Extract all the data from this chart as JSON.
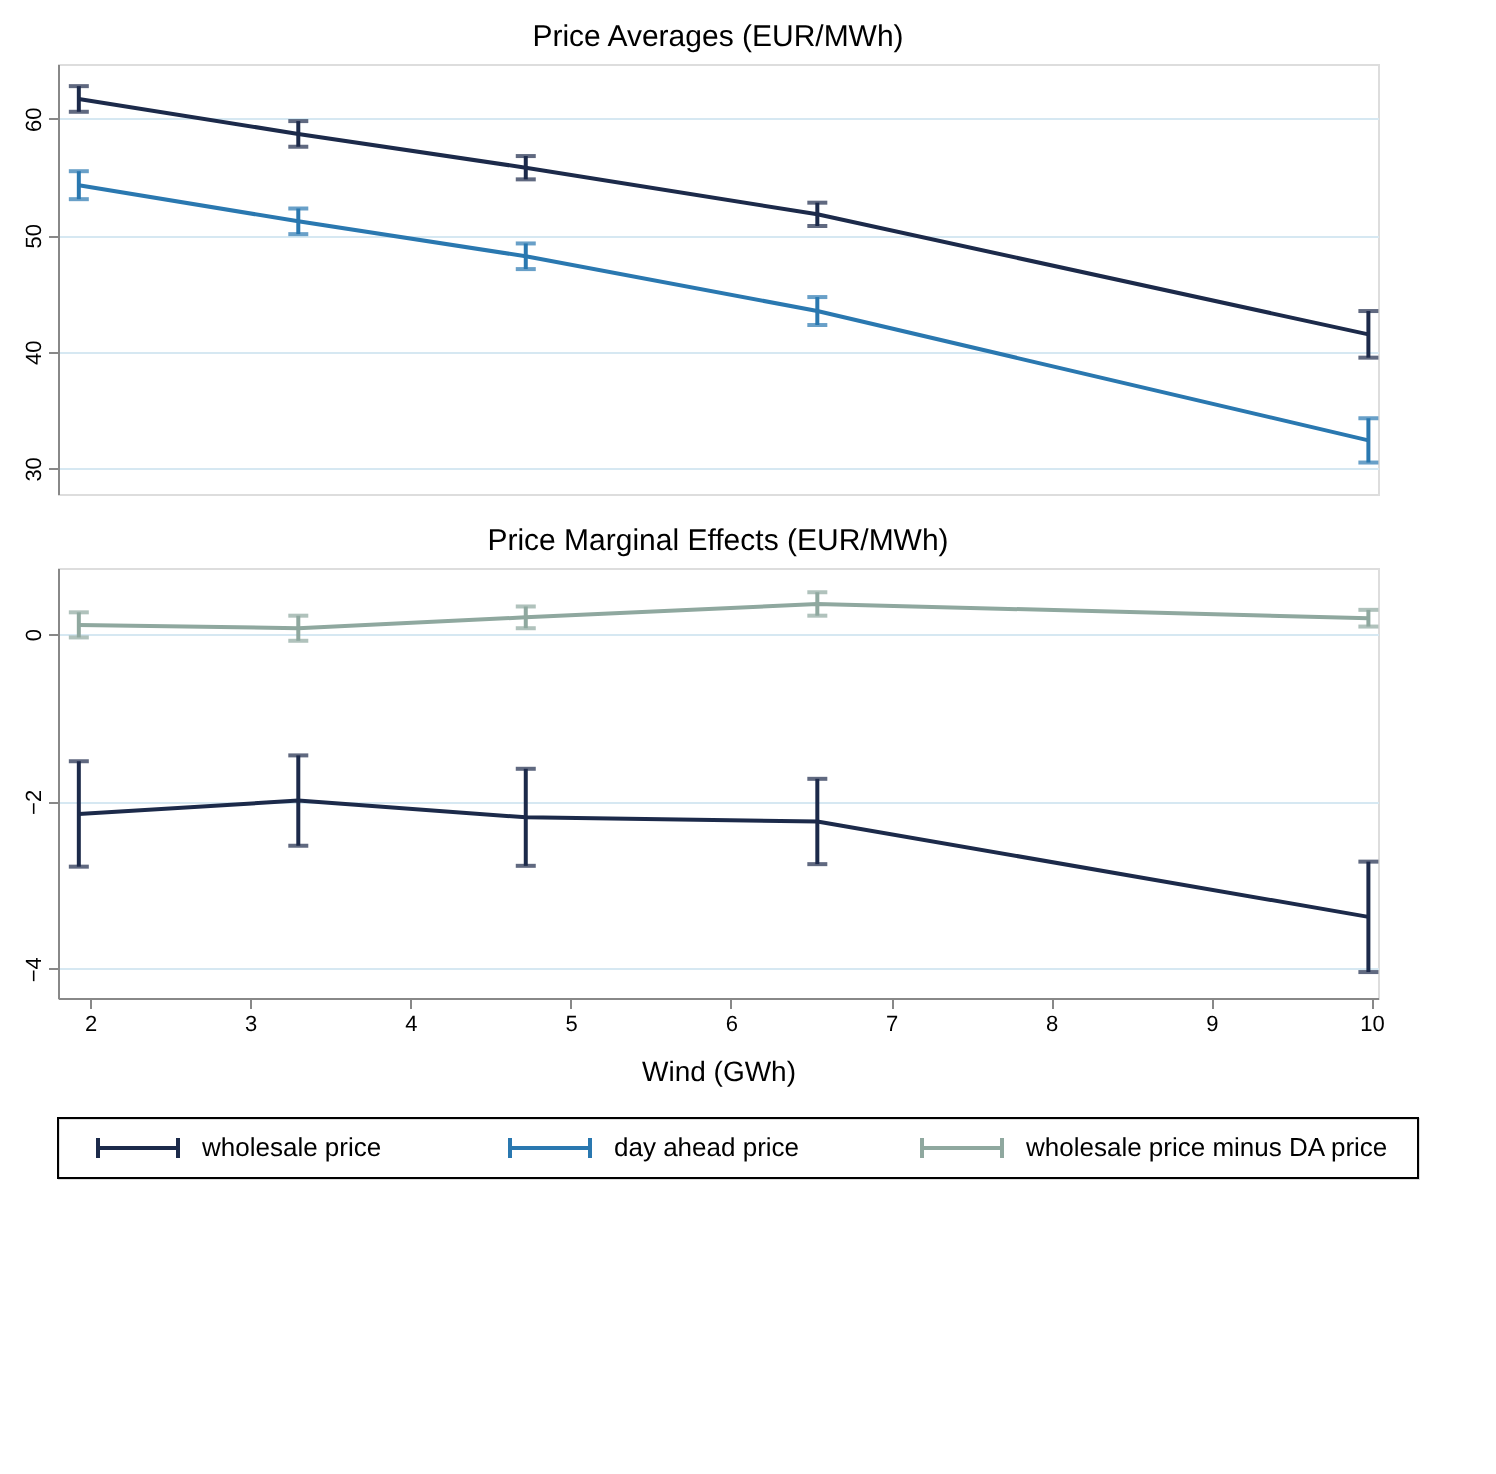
{
  "chart_data": [
    {
      "type": "line",
      "title": "Price Averages (EUR/MWh)",
      "x": [
        1.93,
        3.3,
        4.72,
        6.54,
        9.98
      ],
      "xlim": [
        1.8,
        10.04
      ],
      "xticks": [
        2,
        3,
        4,
        5,
        6,
        7,
        8,
        9,
        10
      ],
      "ylim": [
        27.8,
        64.7
      ],
      "yticks": [
        30,
        40,
        50,
        60
      ],
      "tick_labels": "y",
      "grid": "y",
      "marker": "none",
      "legend": "bottom",
      "series": [
        {
          "name": "wholesale price",
          "color": "#1c2a4a",
          "values": [
            61.7,
            58.7,
            55.8,
            51.8,
            41.5
          ],
          "errors": [
            1.1,
            1.1,
            1.0,
            1.0,
            2.0
          ]
        },
        {
          "name": "day ahead price",
          "color": "#2a78b0",
          "values": [
            54.3,
            51.2,
            48.2,
            43.5,
            32.4
          ],
          "errors": [
            1.2,
            1.1,
            1.1,
            1.2,
            1.9
          ]
        }
      ]
    },
    {
      "type": "line",
      "title": "Price Marginal Effects (EUR/MWh)",
      "xlabel": "Wind (GWh)",
      "x": [
        1.93,
        3.3,
        4.72,
        6.54,
        9.98
      ],
      "xlim": [
        1.8,
        10.04
      ],
      "xticks": [
        2,
        3,
        4,
        5,
        6,
        7,
        8,
        9,
        10
      ],
      "ylim": [
        -4.35,
        0.79
      ],
      "yticks": [
        -4,
        -2,
        0
      ],
      "grid": "y",
      "marker": "none",
      "legend": "bottom",
      "series": [
        {
          "name": "wholesale price",
          "color": "#1c2a4a",
          "values": [
            -2.15,
            -1.99,
            -2.19,
            -2.24,
            -3.38
          ],
          "errors": [
            0.63,
            0.54,
            0.58,
            0.51,
            0.66
          ]
        },
        {
          "name": "wholesale price minus DA price",
          "color": "#8fa89f",
          "values": [
            0.11,
            0.07,
            0.2,
            0.36,
            0.19
          ],
          "errors": [
            0.15,
            0.15,
            0.13,
            0.14,
            0.1
          ]
        }
      ]
    }
  ]
}
